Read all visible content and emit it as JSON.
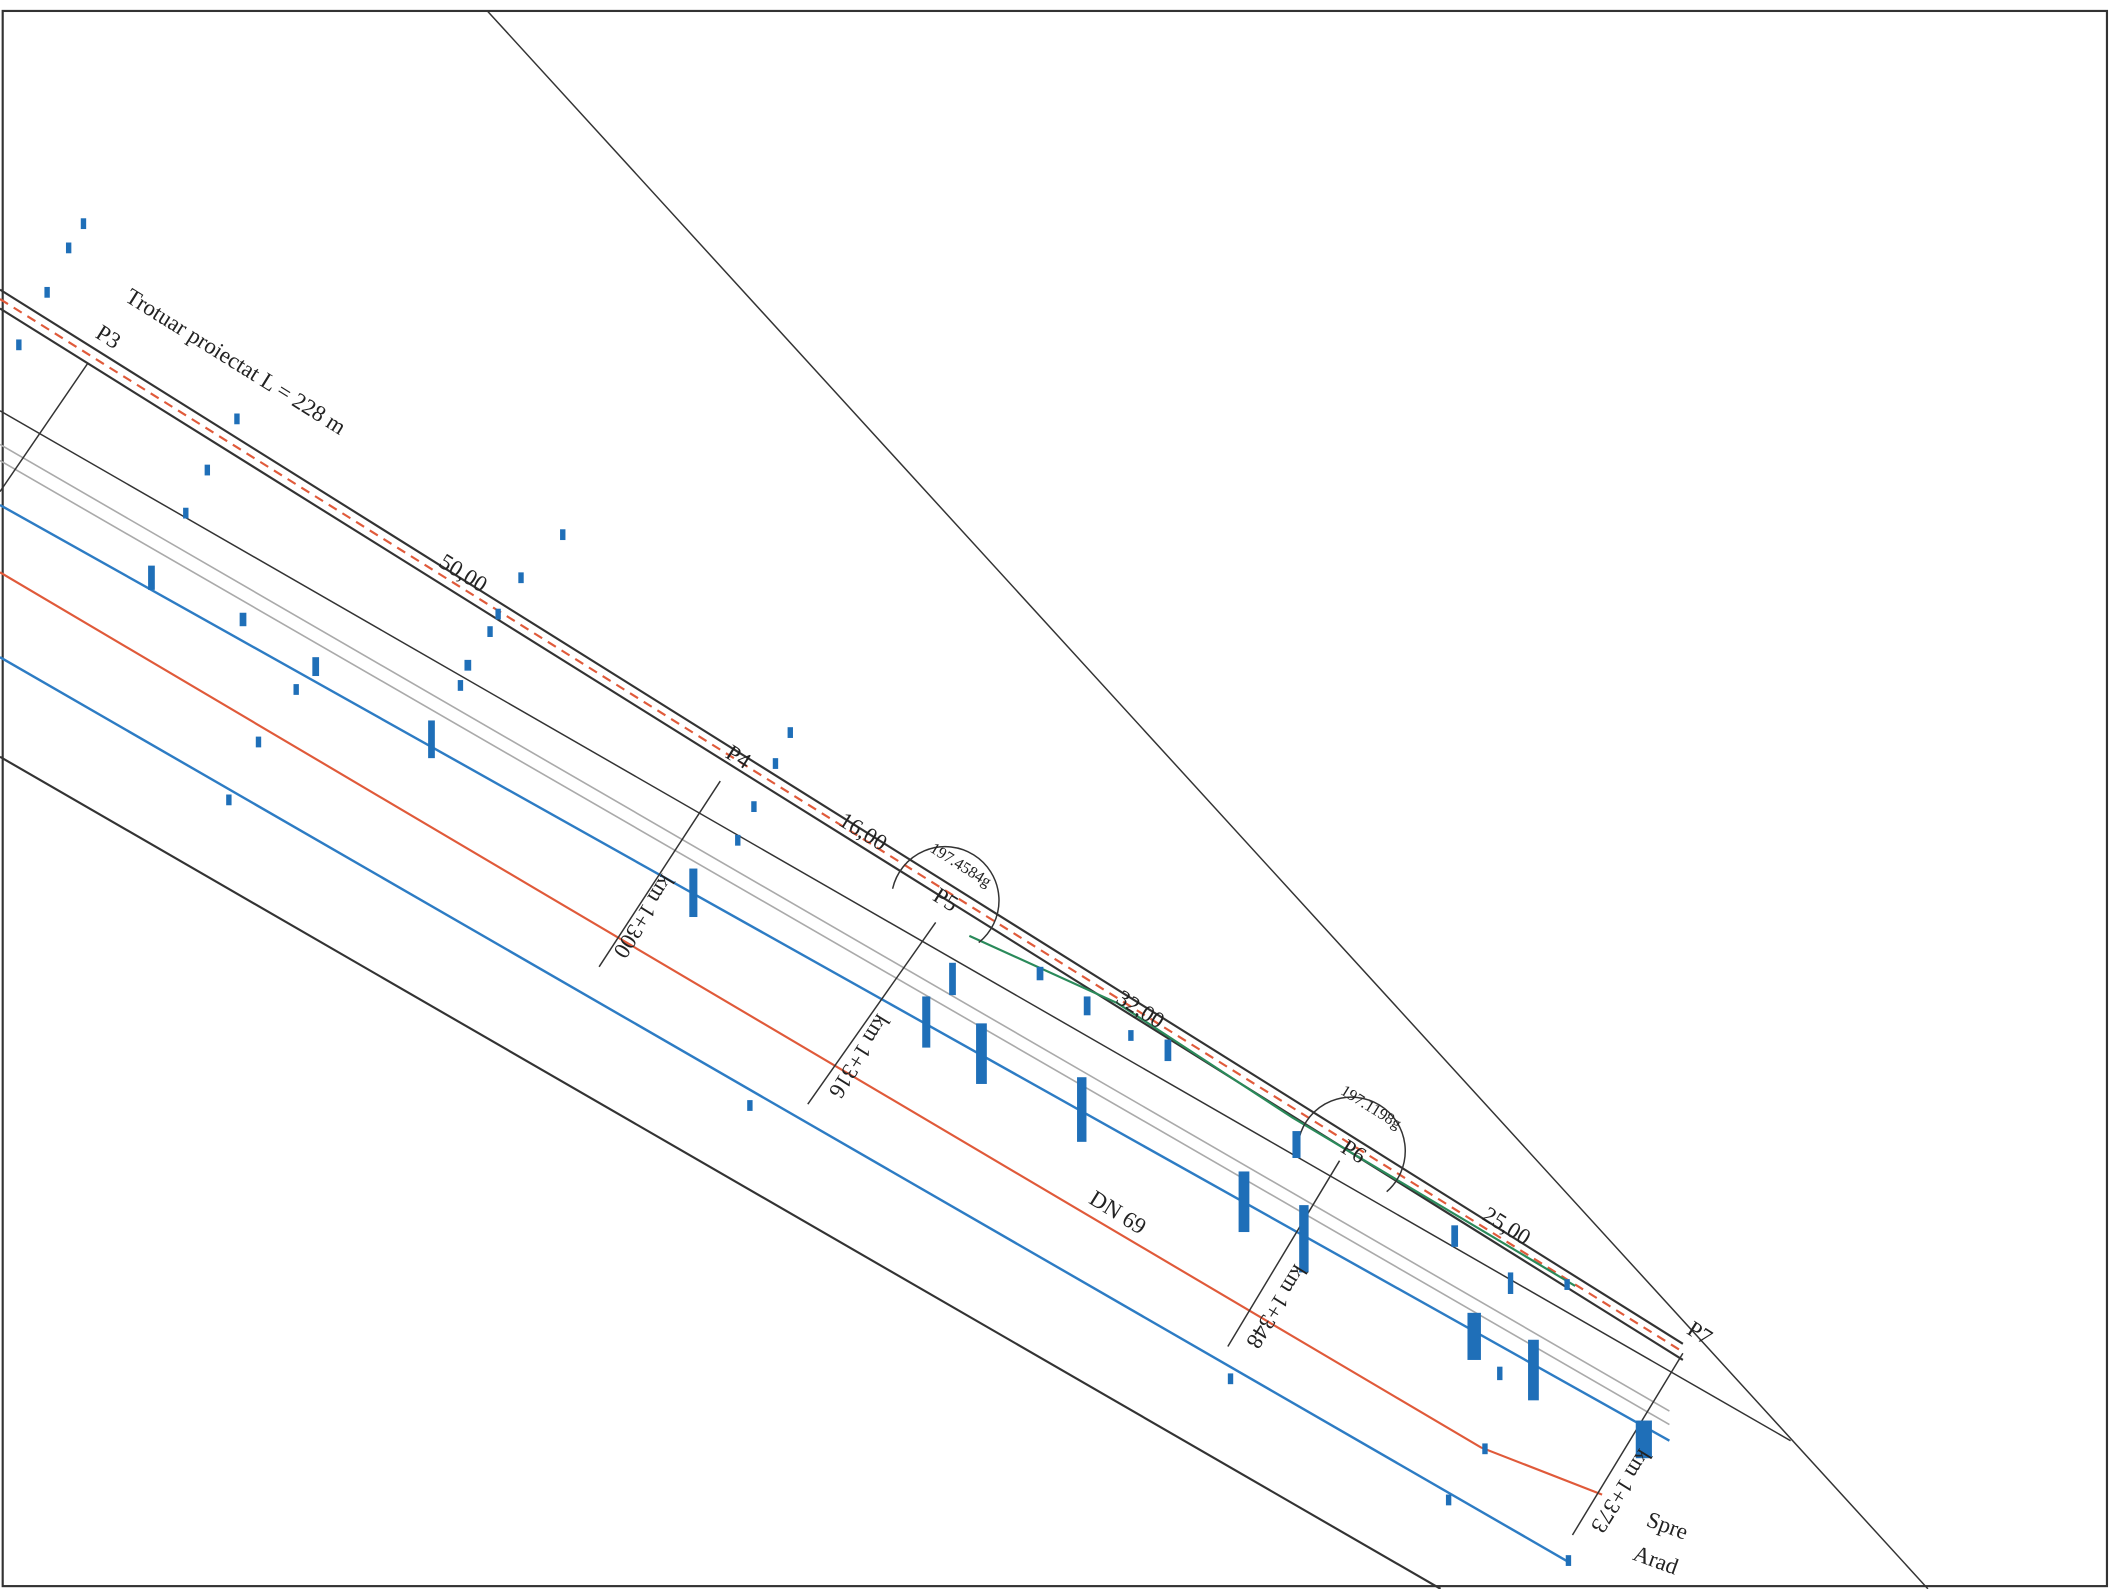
{
  "labels": {
    "sidewalk": "Trotuar proiectat L = 228 m",
    "points": [
      "P3",
      "P4",
      "P5",
      "P6",
      "P7"
    ],
    "distances": [
      "50,00",
      "16,00",
      "32,00",
      "25,00"
    ],
    "angles": [
      "197.4584g",
      "197.1198g"
    ],
    "chainages": [
      "km 1+300",
      "km 1+316",
      "km 1+348",
      "km 1+373"
    ],
    "road": "DN 69",
    "direction": [
      "Spre",
      "Arad"
    ]
  }
}
